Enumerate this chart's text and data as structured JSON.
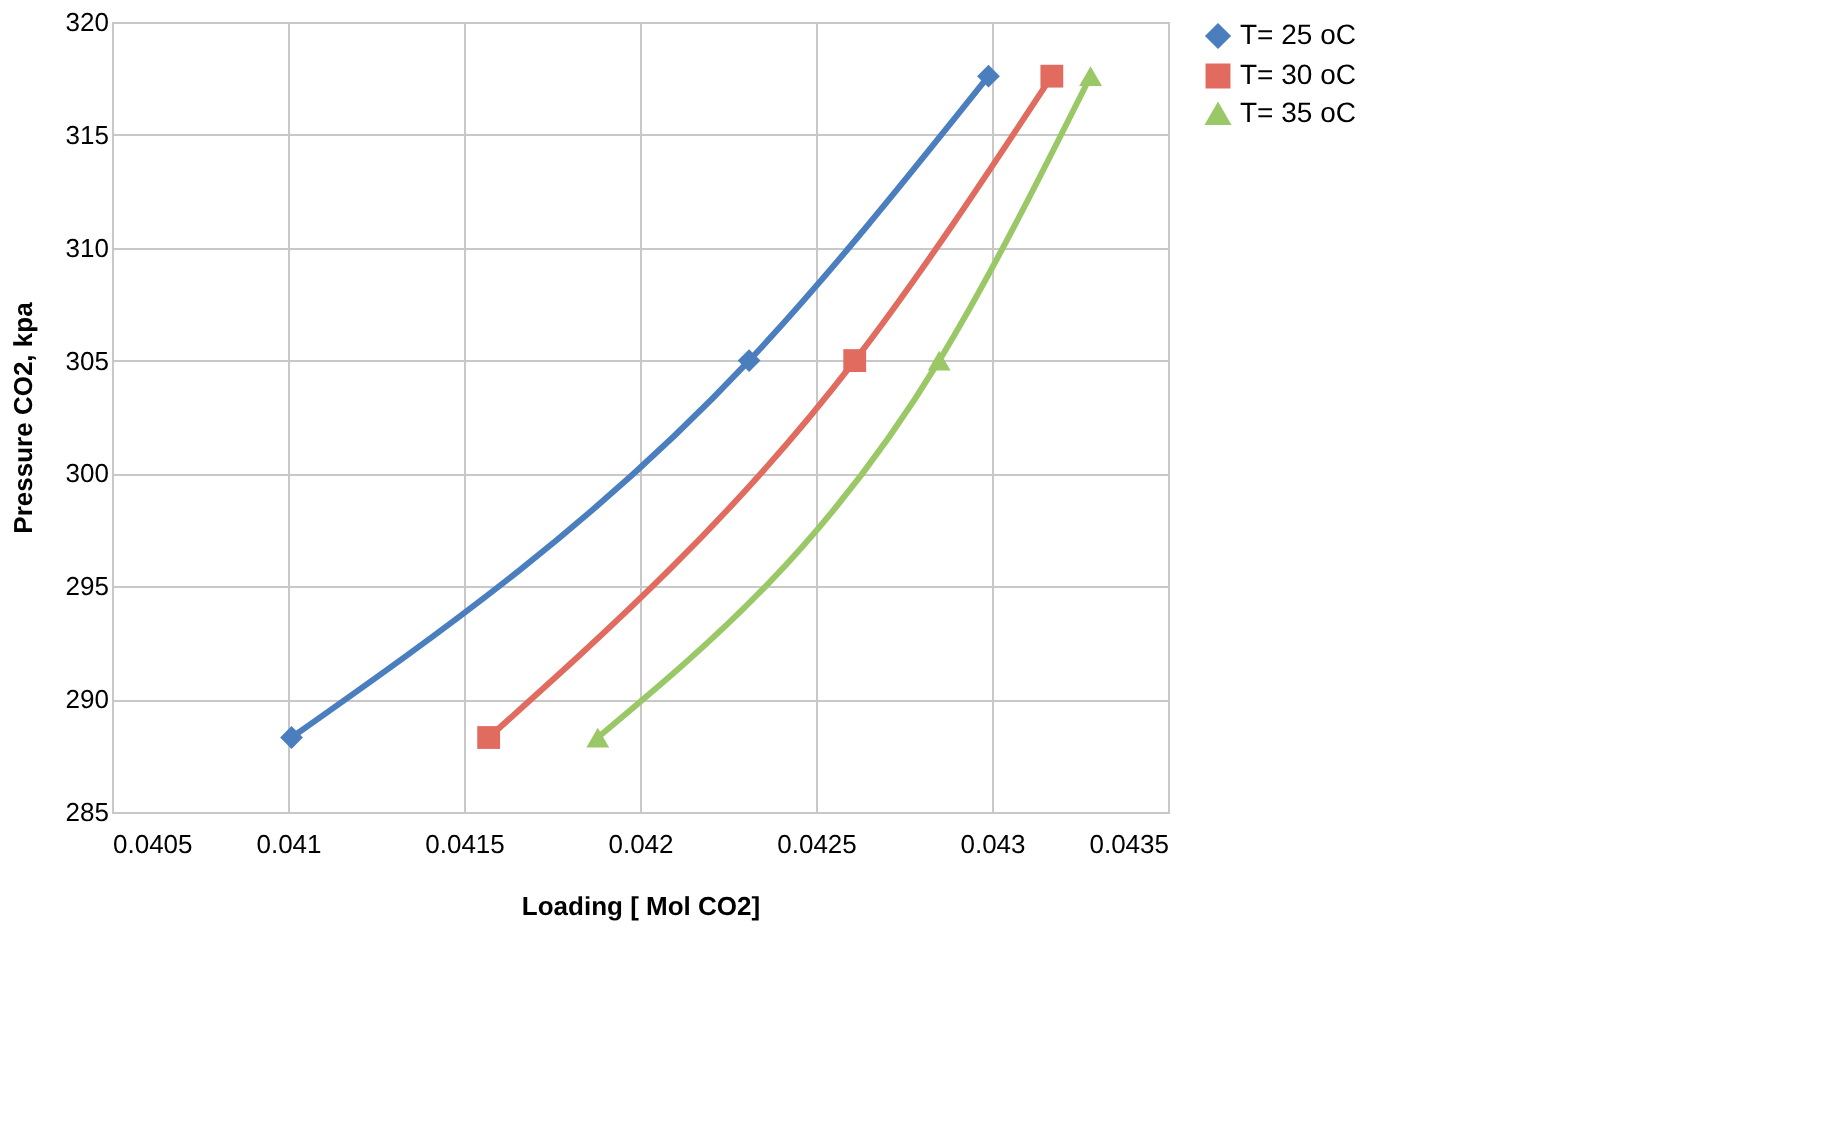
{
  "chart_data": {
    "type": "line",
    "xlabel": "Loading [ Mol CO2]",
    "ylabel": "Pressure CO2, kpa",
    "xlim": [
      0.0405,
      0.0435
    ],
    "xticks": [
      0.0405,
      0.041,
      0.0415,
      0.042,
      0.0425,
      0.043,
      0.0435
    ],
    "ylim": [
      285,
      320
    ],
    "yticks": [
      285,
      290,
      295,
      300,
      305,
      310,
      315,
      320
    ],
    "grid": true,
    "legend": "right",
    "line_style": "solid",
    "series": [
      {
        "name": "T= 25 oC",
        "color": "#4a7ebf",
        "marker": "diamond",
        "x": [
          0.04101,
          0.04231,
          0.04299
        ],
        "values": [
          288.3,
          305.0,
          317.6
        ]
      },
      {
        "name": "T= 30 oC",
        "color": "#e06b5e",
        "marker": "square",
        "x": [
          0.04157,
          0.04261,
          0.04317
        ],
        "values": [
          288.3,
          305.0,
          317.6
        ]
      },
      {
        "name": "T= 35 oC",
        "color": "#9bc866",
        "marker": "triangle",
        "x": [
          0.04188,
          0.04285,
          0.04328
        ],
        "values": [
          288.3,
          305.0,
          317.6
        ]
      }
    ]
  }
}
